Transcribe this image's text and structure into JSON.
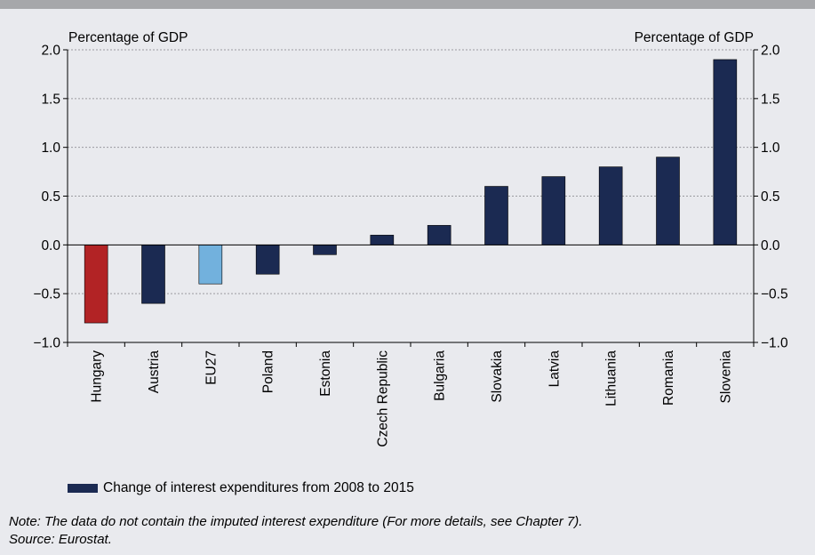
{
  "chart_data": {
    "type": "bar",
    "ylabel_left": "Percentage of GDP",
    "ylabel_right": "Percentage of GDP",
    "ylim": [
      -1.0,
      2.0
    ],
    "yticks": [
      2.0,
      1.5,
      1.0,
      0.5,
      0.0,
      -0.5,
      -1.0
    ],
    "ytick_labels_left": [
      "2.0",
      "1.5",
      "1.0",
      "0.5",
      "0.0",
      "−0.5",
      "−1.0"
    ],
    "ytick_labels_right": [
      "2.0",
      "1.5",
      "1.0",
      "0.5",
      "0.0",
      "−0.5",
      "−1.0"
    ],
    "grid": true,
    "categories": [
      "Hungary",
      "Austria",
      "EU27",
      "Poland",
      "Estonia",
      "Czech Republic",
      "Bulgaria",
      "Slovakia",
      "Latvia",
      "Lithuania",
      "Romania",
      "Slovenia"
    ],
    "series": [
      {
        "name": "Change of interest expenditures from 2008 to 2015",
        "values": [
          -0.8,
          -0.6,
          -0.4,
          -0.3,
          -0.1,
          0.1,
          0.2,
          0.6,
          0.7,
          0.8,
          0.9,
          1.9
        ]
      }
    ],
    "bar_colors": [
      "#b22325",
      "#1b2a52",
      "#72b1dd",
      "#1b2a52",
      "#1b2a52",
      "#1b2a52",
      "#1b2a52",
      "#1b2a52",
      "#1b2a52",
      "#1b2a52",
      "#1b2a52",
      "#1b2a52"
    ],
    "legend_position": "bottom-left"
  },
  "colors": {
    "main_bar": "#1b2a52",
    "highlight_bar": "#b22325",
    "eu_bar": "#72b1dd",
    "background": "#e9eaee"
  },
  "legend": {
    "label": "Change of interest expenditures from 2008 to 2015"
  },
  "note": {
    "line1": "Note: The data do not contain the imputed interest expenditure (For more details, see Chapter 7).",
    "line2": "Source: Eurostat."
  }
}
